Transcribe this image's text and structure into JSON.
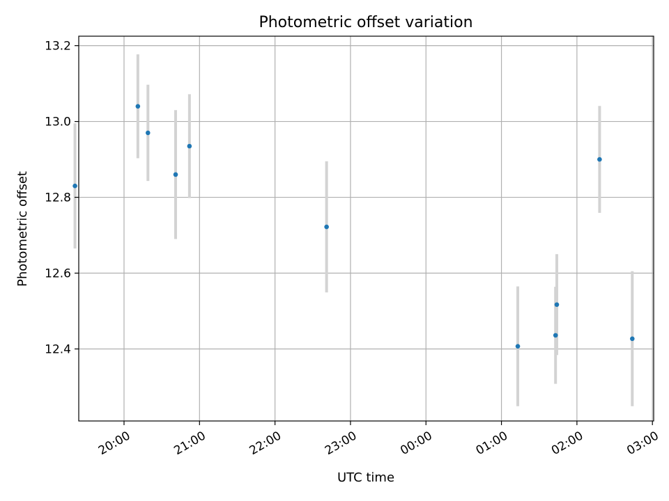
{
  "chart_data": {
    "type": "scatter",
    "title": "Photometric offset variation",
    "xlabel": "UTC time",
    "ylabel": "Photometric offset",
    "x_ticks": [
      "20:00",
      "21:00",
      "22:00",
      "23:00",
      "00:00",
      "01:00",
      "02:00",
      "03:00"
    ],
    "y_ticks": [
      "12.4",
      "12.6",
      "12.8",
      "13.0",
      "13.2"
    ],
    "xlim": [
      "19:24",
      "03:01"
    ],
    "ylim": [
      12.21,
      13.225
    ],
    "grid": true,
    "colors": {
      "point": "#1f77b4",
      "errorbar": "#d3d3d3",
      "grid": "#b0b0b0"
    },
    "points": [
      {
        "x": "19:21",
        "y": 12.83,
        "err": 0.165
      },
      {
        "x": "20:11",
        "y": 13.04,
        "err": 0.137
      },
      {
        "x": "20:19",
        "y": 12.97,
        "err": 0.127
      },
      {
        "x": "20:41",
        "y": 12.86,
        "err": 0.17
      },
      {
        "x": "20:52",
        "y": 12.935,
        "err": 0.137
      },
      {
        "x": "22:41",
        "y": 12.722,
        "err": 0.173
      },
      {
        "x": "01:13",
        "y": 12.407,
        "err": 0.158
      },
      {
        "x": "01:43",
        "y": 12.436,
        "err": 0.128
      },
      {
        "x": "01:44",
        "y": 12.517,
        "err": 0.133
      },
      {
        "x": "02:18",
        "y": 12.9,
        "err": 0.141
      },
      {
        "x": "02:44",
        "y": 12.427,
        "err": 0.178
      }
    ]
  }
}
